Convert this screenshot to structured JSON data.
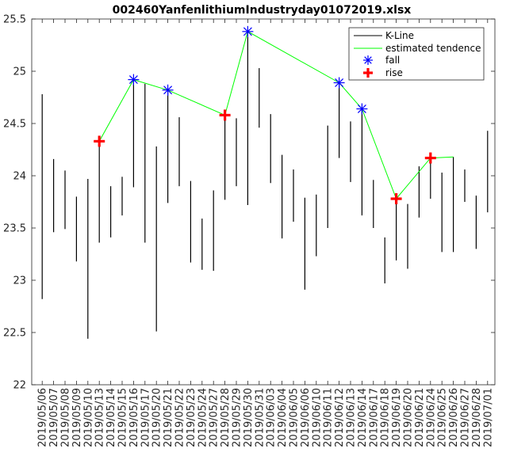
{
  "chart_data": {
    "type": "line",
    "title": "002460YanfenlithiumIndustryday01072019.xlsx",
    "xlabel": "",
    "ylabel": "",
    "ylim": [
      22,
      25.5
    ],
    "yticks": [
      22,
      22.5,
      23,
      23.5,
      24,
      24.5,
      25,
      25.5
    ],
    "ytick_labels": [
      "22",
      "22.5",
      "23",
      "23.5",
      "24",
      "24.5",
      "25",
      "25.5"
    ],
    "grid": false,
    "legend_position": "top-right",
    "legend": [
      "K-Line",
      "estimated tendence",
      "fall",
      "rise"
    ],
    "categories": [
      "2019/05/06",
      "2019/05/07",
      "2019/05/08",
      "2019/05/09",
      "2019/05/10",
      "2019/05/13",
      "2019/05/14",
      "2019/05/15",
      "2019/05/16",
      "2019/05/17",
      "2019/05/20",
      "2019/05/21",
      "2019/05/22",
      "2019/05/23",
      "2019/05/24",
      "2019/05/27",
      "2019/05/28",
      "2019/05/29",
      "2019/05/30",
      "2019/05/31",
      "2019/06/03",
      "2019/06/04",
      "2019/06/05",
      "2019/06/06",
      "2019/06/10",
      "2019/06/11",
      "2019/06/12",
      "2019/06/13",
      "2019/06/14",
      "2019/06/17",
      "2019/06/18",
      "2019/06/19",
      "2019/06/20",
      "2019/06/21",
      "2019/06/24",
      "2019/06/25",
      "2019/06/26",
      "2019/06/27",
      "2019/06/28",
      "2019/07/01"
    ],
    "kline": {
      "low": [
        22.82,
        23.46,
        23.49,
        23.18,
        22.44,
        23.36,
        23.41,
        23.62,
        23.89,
        23.36,
        22.51,
        23.74,
        23.9,
        23.17,
        23.1,
        23.09,
        23.77,
        23.9,
        23.72,
        24.46,
        23.93,
        23.4,
        23.56,
        22.91,
        23.23,
        23.5,
        24.17,
        23.94,
        23.62,
        23.5,
        22.97,
        23.19,
        23.11,
        23.6,
        23.78,
        23.27,
        23.27,
        23.75,
        23.3,
        23.65
      ],
      "high": [
        24.78,
        24.16,
        24.05,
        23.8,
        23.97,
        24.33,
        23.9,
        23.99,
        24.93,
        24.88,
        24.28,
        24.82,
        24.56,
        23.95,
        23.59,
        23.86,
        24.58,
        24.55,
        25.38,
        25.03,
        24.59,
        24.2,
        24.06,
        23.79,
        23.82,
        24.48,
        24.89,
        24.52,
        24.64,
        23.96,
        23.41,
        23.79,
        23.73,
        24.09,
        24.17,
        24.03,
        24.18,
        24.06,
        23.81,
        24.43
      ]
    },
    "series": [
      {
        "name": "estimated tendence",
        "color": "#00ff00",
        "x": [
          "2019/05/13",
          "2019/05/16",
          "2019/05/21",
          "2019/05/28",
          "2019/05/30",
          "2019/06/12",
          "2019/06/14",
          "2019/06/19",
          "2019/06/24",
          "2019/06/26"
        ],
        "values": [
          24.33,
          24.92,
          24.82,
          24.58,
          25.38,
          24.89,
          24.64,
          23.78,
          24.17,
          24.18
        ]
      },
      {
        "name": "fall",
        "marker": "asterisk",
        "color": "#0000ff",
        "x": [
          "2019/05/16",
          "2019/05/21",
          "2019/05/30",
          "2019/06/12",
          "2019/06/14"
        ],
        "values": [
          24.92,
          24.82,
          25.38,
          24.89,
          24.64
        ]
      },
      {
        "name": "rise",
        "marker": "plus",
        "color": "#ff0000",
        "x": [
          "2019/05/13",
          "2019/05/28",
          "2019/06/19",
          "2019/06/24"
        ],
        "values": [
          24.33,
          24.58,
          23.78,
          24.17
        ]
      }
    ]
  }
}
